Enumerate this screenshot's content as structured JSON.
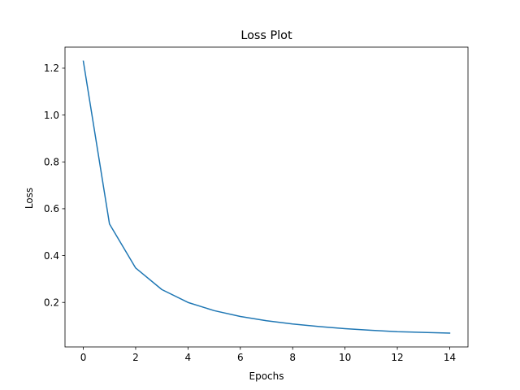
{
  "chart_data": {
    "type": "line",
    "title": "Loss Plot",
    "xlabel": "Epochs",
    "ylabel": "Loss",
    "xlim": [
      -0.7,
      14.7
    ],
    "ylim": [
      0.01,
      1.29
    ],
    "xticks": [
      0,
      2,
      4,
      6,
      8,
      10,
      12,
      14
    ],
    "yticks": [
      0.2,
      0.4,
      0.6,
      0.8,
      1.0,
      1.2
    ],
    "ytick_labels": [
      "0.2",
      "0.4",
      "0.6",
      "0.8",
      "1.0",
      "1.2"
    ],
    "grid": false,
    "series": [
      {
        "color": "#1f77b4",
        "x": [
          0,
          1,
          2,
          3,
          4,
          5,
          6,
          7,
          8,
          9,
          10,
          11,
          12,
          13,
          14
        ],
        "y": [
          1.23,
          0.535,
          0.347,
          0.255,
          0.2,
          0.165,
          0.14,
          0.122,
          0.108,
          0.097,
          0.088,
          0.081,
          0.075,
          0.072,
          0.069
        ]
      }
    ]
  }
}
